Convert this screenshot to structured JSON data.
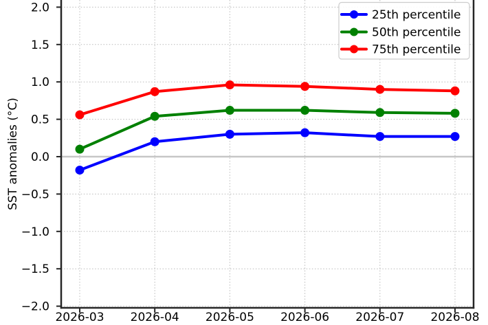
{
  "chart_data": {
    "type": "line",
    "title": "",
    "xlabel": "",
    "ylabel": "SST anomalies (°C)",
    "x": [
      "2026-03",
      "2026-04",
      "2026-05",
      "2026-06",
      "2026-07",
      "2026-08"
    ],
    "series": [
      {
        "name": "25th percentile",
        "color": "#0000ff",
        "values": [
          -0.18,
          0.2,
          0.3,
          0.32,
          0.27,
          0.27
        ]
      },
      {
        "name": "50th percentile",
        "color": "#008000",
        "values": [
          0.1,
          0.54,
          0.62,
          0.62,
          0.59,
          0.58
        ]
      },
      {
        "name": "75th percentile",
        "color": "#ff0000",
        "values": [
          0.56,
          0.87,
          0.96,
          0.94,
          0.9,
          0.88
        ]
      }
    ],
    "ylim": [
      -2.0,
      2.0
    ],
    "yticks": [
      2.0,
      1.5,
      1.0,
      0.5,
      0.0,
      -0.5,
      -1.0,
      -1.5,
      -2.0
    ],
    "ytick_labels": [
      "2.0",
      "1.5",
      "1.0",
      "0.5",
      "0.0",
      "−0.5",
      "−1.0",
      "−1.5",
      "−2.0"
    ],
    "grid": "dotted",
    "zero_line": true,
    "legend_position": "upper right",
    "marker": "circle",
    "colors": {
      "grid": "#b9b9b9",
      "zero_line": "#c6c6c6",
      "spine": "#262626",
      "text": "#000000",
      "legend_border": "#cccccc",
      "legend_bg": "#ffffff"
    }
  }
}
